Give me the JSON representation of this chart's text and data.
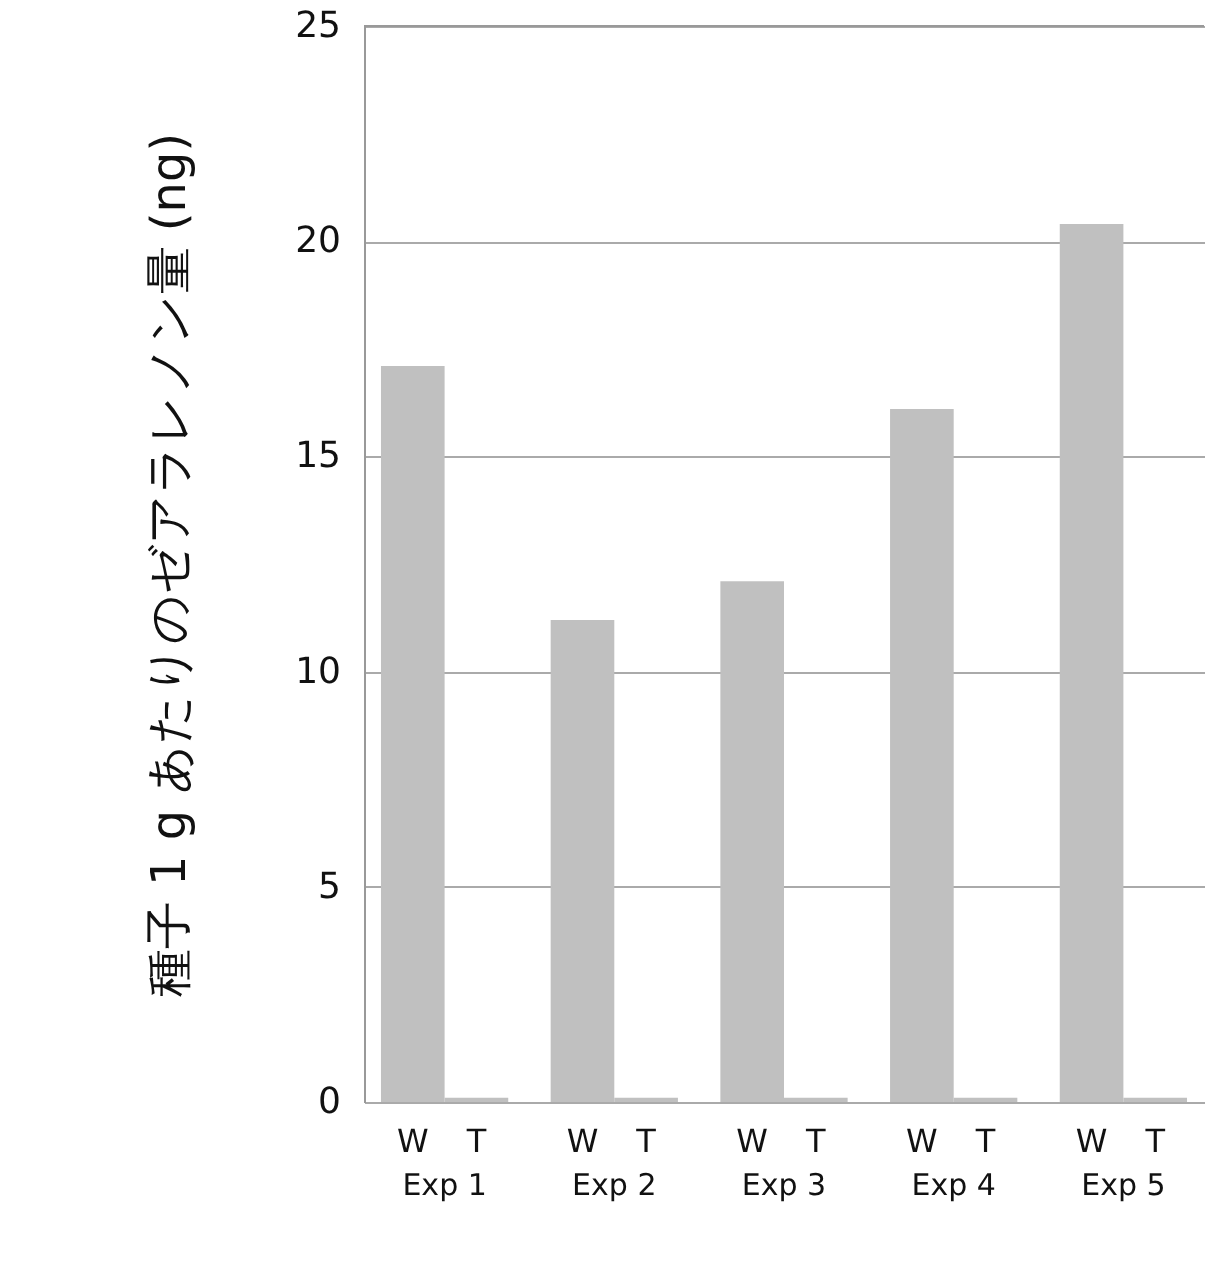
{
  "chart_data": {
    "type": "bar",
    "ylabel": "種子 1 g あたりのゼアラレノン量 (ng)",
    "categories": [
      "Exp 1",
      "Exp 2",
      "Exp 3",
      "Exp 4",
      "Exp 5"
    ],
    "series": [
      {
        "name": "W",
        "color": "#c0c0c0",
        "values": [
          17.1,
          11.2,
          12.1,
          16.1,
          20.4
        ]
      },
      {
        "name": "T",
        "color": "#c0c0c0",
        "values": [
          0.1,
          0.1,
          0.1,
          0.1,
          0.1
        ]
      }
    ],
    "ylim": [
      0,
      25
    ],
    "yticks": [
      0,
      5,
      10,
      15,
      20,
      25
    ],
    "grid": "y"
  }
}
